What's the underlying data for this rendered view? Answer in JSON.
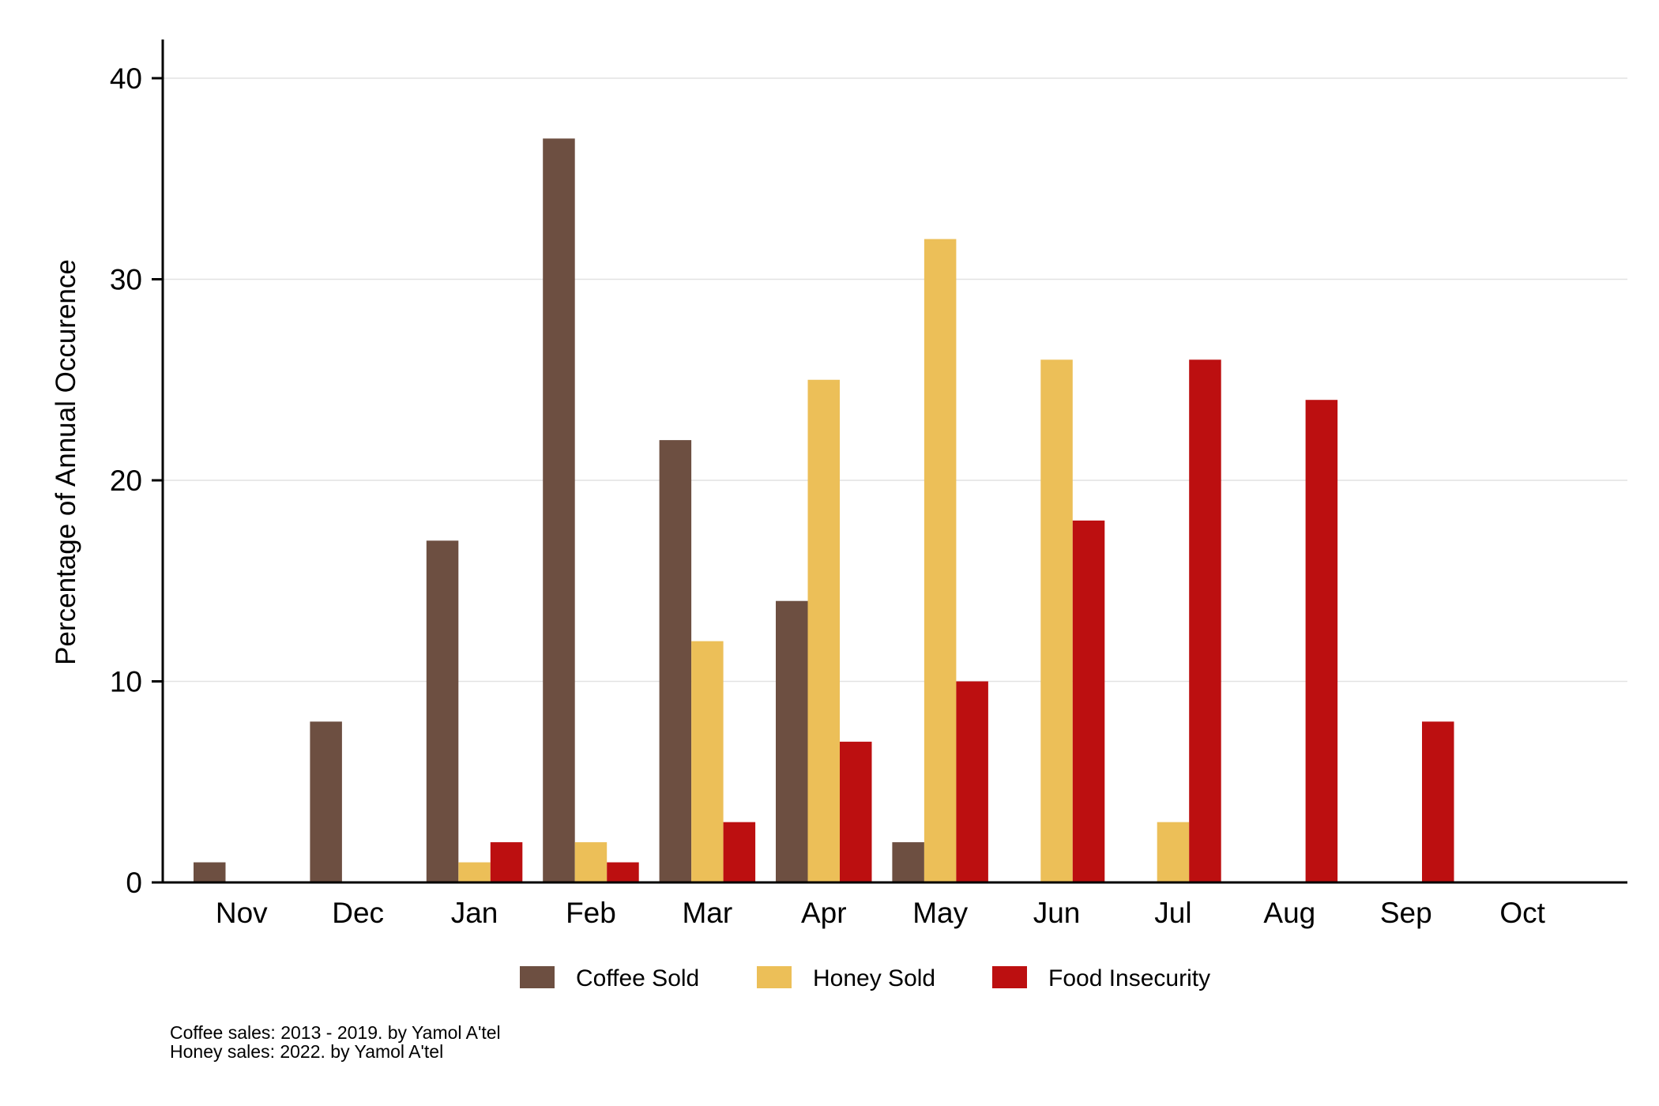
{
  "chart_data": {
    "type": "bar",
    "categories": [
      "Nov",
      "Dec",
      "Jan",
      "Feb",
      "Mar",
      "Apr",
      "May",
      "Jun",
      "Jul",
      "Aug",
      "Sep",
      "Oct"
    ],
    "series": [
      {
        "name": "Coffee Sold",
        "color": "#6d4f41",
        "values": [
          1,
          8,
          17,
          37,
          22,
          14,
          2,
          0,
          0,
          0,
          0,
          0
        ]
      },
      {
        "name": "Honey Sold",
        "color": "#ecbf58",
        "values": [
          0,
          0,
          1,
          2,
          12,
          25,
          32,
          26,
          3,
          0,
          0,
          0
        ]
      },
      {
        "name": "Food Insecurity",
        "color": "#bc0f10",
        "values": [
          0,
          0,
          2,
          1,
          3,
          7,
          10,
          18,
          26,
          24,
          8,
          0
        ]
      }
    ],
    "ylabel": "Percentage of Annual Occurence",
    "xlabel": "",
    "ylim": [
      0,
      42
    ],
    "yticks": [
      0,
      10,
      20,
      30,
      40
    ],
    "grid": true,
    "legend_position": "bottom",
    "notes": [
      "Coffee sales: 2013 - 2019. by Yamol A'tel",
      "Honey sales: 2022. by Yamol A'tel"
    ]
  }
}
